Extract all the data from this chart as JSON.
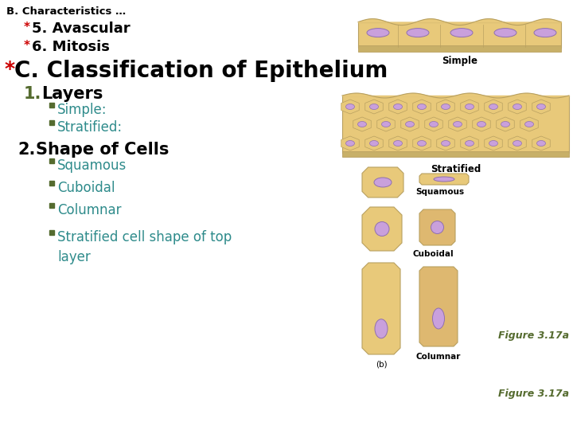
{
  "background_color": "#ffffff",
  "title_b": "B. Characteristics …",
  "title_b_color": "#000000",
  "title_b_fontsize": 9.5,
  "item5_text": "5. Avascular",
  "item6_text": "6. Mitosis",
  "star_color": "#cc0000",
  "item56_color": "#000000",
  "item56_fontsize": 13,
  "title_c_text": "C. Classification of Epithelium",
  "title_c_color": "#000000",
  "title_c_fontsize": 20,
  "layers_num": "1.",
  "layers_text": "Layers",
  "layers_num_color": "#556b2f",
  "layers_text_color": "#000000",
  "layers_fontsize": 15,
  "bullet_color": "#556b2f",
  "simple_label": "Simple:",
  "stratified_label": "Stratified:",
  "bullet_text_color": "#2e8b8b",
  "bullet_fontsize": 12,
  "shape_num": "2.",
  "shape_text": "Shape of Cells",
  "shape_fontsize": 15,
  "shape_num_color": "#000000",
  "shape_text_color": "#000000",
  "squamous_text": "Squamous",
  "cuboidal_text": "Cuboidal",
  "columnar_text": "Columnar",
  "stratified_top_text": "Stratified cell shape of top\nlayer",
  "sub_bullet_color": "#556b2f",
  "sub_bullet_text_color": "#2e8b8b",
  "sub_bullet_fontsize": 12,
  "fig_label": "Figure 3.17a",
  "fig_label_color": "#556b2f",
  "fig_label_fontsize": 9,
  "img_label_simple": "Simple",
  "img_label_stratified": "Stratified",
  "img_label_squamous": "Squamous",
  "img_label_cuboidal": "Cuboidal",
  "img_label_columnar": "Columnar",
  "img_label_b": "(b)",
  "img_label_color": "#000000",
  "img_label_fontsize": 7.5,
  "cell_fill": "#e8c97a",
  "cell_fill2": "#deb870",
  "nucleus_fill": "#c9a0dc",
  "cell_edge": "#b8a060",
  "nucleus_edge": "#9070b0"
}
